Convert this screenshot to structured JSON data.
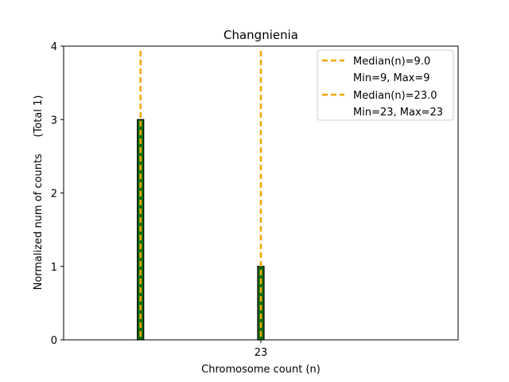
{
  "chart_data": {
    "type": "bar",
    "title": "Changnienia",
    "xlabel": "Chromosome count (n)",
    "ylabel": "Normalized num of counts     (Total 1)",
    "xlim": [
      0,
      100
    ],
    "ylim": [
      0,
      4
    ],
    "yticks": [
      0,
      1,
      2,
      3,
      4
    ],
    "xticks": [
      {
        "value": 50,
        "label": "23"
      }
    ],
    "bars": [
      {
        "x": 19.5,
        "value": 3
      },
      {
        "x": 50,
        "value": 1
      }
    ],
    "median_lines": [
      {
        "x": 19.5,
        "label": "Median(n)=9.0",
        "range_label": "Min=9, Max=9"
      },
      {
        "x": 50,
        "label": "Median(n)=23.0",
        "range_label": "Min=23, Max=23"
      }
    ],
    "baseline_segment": [
      0,
      27
    ],
    "legend_position": "top-right",
    "grid": false,
    "colors": {
      "bar_fill": "#117011",
      "bar_edge": "#000000",
      "median_line": "#f0a800"
    }
  }
}
